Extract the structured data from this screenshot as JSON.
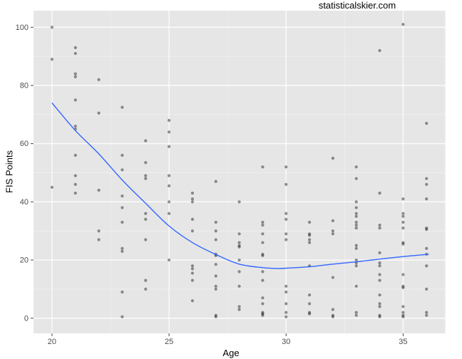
{
  "title": "statisticalskier.com",
  "chart_data": {
    "type": "scatter",
    "title": "statisticalskier.com",
    "xlabel": "Age",
    "ylabel": "FIS Points",
    "x_ticks": [
      20,
      25,
      30,
      35
    ],
    "x_minor_ticks": [
      22.5,
      27.5,
      32.5
    ],
    "y_ticks": [
      0,
      20,
      40,
      60,
      80,
      100
    ],
    "y_minor_ticks": [
      10,
      30,
      50,
      70,
      90
    ],
    "xlim": [
      19.21,
      36.8
    ],
    "ylim": [
      -5.2,
      105.7
    ],
    "grid": "on",
    "legend": "none",
    "panel_bg": "#e6e6e6",
    "grid_major_color": "#ffffff",
    "grid_minor_color": "#f2f2f2",
    "point_color": "rgba(0,0,0,0.42)",
    "smooth_color": "#3366ff",
    "tick_color": "#333333",
    "series": [
      {
        "name": "fis-points-by-age",
        "kind": "points",
        "points": [
          [
            20,
            100
          ],
          [
            20,
            89
          ],
          [
            20,
            45
          ],
          [
            21,
            93
          ],
          [
            21,
            91
          ],
          [
            21,
            84
          ],
          [
            21,
            83
          ],
          [
            21,
            75
          ],
          [
            21,
            66
          ],
          [
            21,
            65
          ],
          [
            21,
            56
          ],
          [
            21,
            49
          ],
          [
            21,
            46
          ],
          [
            21,
            43
          ],
          [
            22,
            82
          ],
          [
            22,
            70.5
          ],
          [
            22,
            44
          ],
          [
            22,
            30
          ],
          [
            22,
            27
          ],
          [
            23,
            72.5
          ],
          [
            23,
            56
          ],
          [
            23,
            51
          ],
          [
            23,
            42
          ],
          [
            23,
            38
          ],
          [
            23,
            33
          ],
          [
            23,
            24
          ],
          [
            23,
            23
          ],
          [
            23,
            9
          ],
          [
            23,
            0.5
          ],
          [
            24,
            61
          ],
          [
            24,
            53.5
          ],
          [
            24,
            49
          ],
          [
            24,
            48
          ],
          [
            24,
            36
          ],
          [
            24,
            34
          ],
          [
            24,
            27
          ],
          [
            24,
            13
          ],
          [
            24,
            10
          ],
          [
            25,
            68
          ],
          [
            25,
            64
          ],
          [
            25,
            59
          ],
          [
            25,
            49
          ],
          [
            25,
            45.5
          ],
          [
            25,
            40
          ],
          [
            25,
            36
          ],
          [
            25,
            20
          ],
          [
            26,
            43
          ],
          [
            26,
            41
          ],
          [
            26,
            40
          ],
          [
            26,
            34
          ],
          [
            26,
            30
          ],
          [
            26,
            18
          ],
          [
            26,
            17
          ],
          [
            26,
            15.5
          ],
          [
            26,
            13
          ],
          [
            26,
            6
          ],
          [
            27,
            47
          ],
          [
            27,
            33
          ],
          [
            27,
            30
          ],
          [
            27,
            27
          ],
          [
            27,
            22
          ],
          [
            27,
            21.5
          ],
          [
            27,
            18.5
          ],
          [
            27,
            14.5
          ],
          [
            27,
            11
          ],
          [
            27,
            10
          ],
          [
            27,
            1
          ],
          [
            27,
            0.5
          ],
          [
            28,
            40
          ],
          [
            28,
            29
          ],
          [
            28,
            26
          ],
          [
            28,
            25
          ],
          [
            28,
            24.5
          ],
          [
            28,
            20
          ],
          [
            28,
            16
          ],
          [
            28,
            11
          ],
          [
            28,
            4
          ],
          [
            28,
            3
          ],
          [
            29,
            52
          ],
          [
            29,
            33
          ],
          [
            29,
            32
          ],
          [
            29,
            29
          ],
          [
            29,
            26
          ],
          [
            29,
            22
          ],
          [
            29,
            21.5
          ],
          [
            29,
            16
          ],
          [
            29,
            13
          ],
          [
            29,
            7
          ],
          [
            29,
            5
          ],
          [
            29,
            2
          ],
          [
            29,
            1.5
          ],
          [
            29,
            1
          ],
          [
            30,
            52
          ],
          [
            30,
            46
          ],
          [
            30,
            36
          ],
          [
            30,
            34
          ],
          [
            30,
            29
          ],
          [
            30,
            27
          ],
          [
            30,
            11
          ],
          [
            30,
            9
          ],
          [
            30,
            5
          ],
          [
            30,
            2
          ],
          [
            30,
            0.5
          ],
          [
            31,
            33
          ],
          [
            31,
            29
          ],
          [
            31,
            28.5
          ],
          [
            31,
            27
          ],
          [
            31,
            26
          ],
          [
            31,
            18
          ],
          [
            31,
            8
          ],
          [
            31,
            5
          ],
          [
            31,
            2
          ],
          [
            31,
            1.5
          ],
          [
            32,
            55
          ],
          [
            32,
            33.5
          ],
          [
            32,
            30
          ],
          [
            32,
            29
          ],
          [
            32,
            14
          ],
          [
            32,
            3
          ],
          [
            32,
            1
          ],
          [
            32,
            0.5
          ],
          [
            33,
            52
          ],
          [
            33,
            48
          ],
          [
            33,
            40
          ],
          [
            33,
            38
          ],
          [
            33,
            36
          ],
          [
            33,
            35
          ],
          [
            33,
            33
          ],
          [
            33,
            32
          ],
          [
            33,
            31
          ],
          [
            33,
            25
          ],
          [
            33,
            24
          ],
          [
            33,
            20
          ],
          [
            33,
            19
          ],
          [
            33,
            18
          ],
          [
            33,
            11
          ],
          [
            33,
            2
          ],
          [
            33,
            1
          ],
          [
            34,
            92
          ],
          [
            34,
            43
          ],
          [
            34,
            32
          ],
          [
            34,
            31
          ],
          [
            34,
            22.5
          ],
          [
            34,
            19
          ],
          [
            34,
            18
          ],
          [
            34,
            15
          ],
          [
            34,
            13
          ],
          [
            34,
            8
          ],
          [
            34,
            5
          ],
          [
            34,
            4
          ],
          [
            34,
            1
          ],
          [
            34,
            0.5
          ],
          [
            35,
            101
          ],
          [
            35,
            41
          ],
          [
            35,
            36
          ],
          [
            35,
            35
          ],
          [
            35,
            33
          ],
          [
            35,
            31
          ],
          [
            35,
            26
          ],
          [
            35,
            25.5
          ],
          [
            35,
            15
          ],
          [
            35,
            11
          ],
          [
            35,
            10.5
          ],
          [
            35,
            4
          ],
          [
            35,
            2
          ],
          [
            35,
            1
          ],
          [
            35,
            0.5
          ],
          [
            36,
            67
          ],
          [
            36,
            48
          ],
          [
            36,
            46
          ],
          [
            36,
            41
          ],
          [
            36,
            31
          ],
          [
            36,
            30.5
          ],
          [
            36,
            24
          ],
          [
            36,
            22
          ],
          [
            36,
            18
          ],
          [
            36,
            10
          ],
          [
            36,
            2
          ],
          [
            36,
            1
          ]
        ]
      },
      {
        "name": "loess-smooth",
        "kind": "line",
        "points": [
          [
            20,
            74
          ],
          [
            21,
            64.5
          ],
          [
            22,
            56.5
          ],
          [
            23,
            47.5
          ],
          [
            24,
            39.5
          ],
          [
            25,
            31.7
          ],
          [
            26,
            26
          ],
          [
            27,
            21.9
          ],
          [
            28,
            18.6
          ],
          [
            29,
            17.4
          ],
          [
            29.6,
            17.1
          ],
          [
            30,
            17.2
          ],
          [
            31,
            17.7
          ],
          [
            32,
            18.6
          ],
          [
            33,
            19.4
          ],
          [
            34,
            20.3
          ],
          [
            35,
            21.2
          ],
          [
            36.1,
            22
          ]
        ]
      }
    ]
  }
}
